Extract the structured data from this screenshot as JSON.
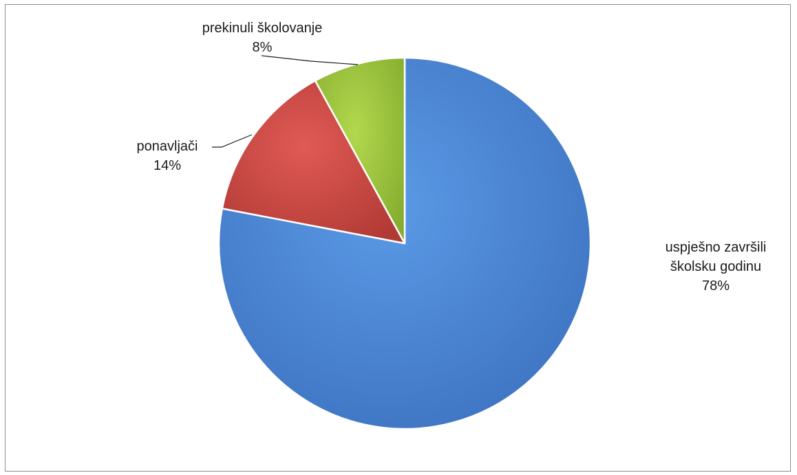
{
  "chart_data": {
    "type": "pie",
    "title": "",
    "slices": [
      {
        "label_lines": [
          "uspješno završili",
          "školsku godinu"
        ],
        "percent_label": "78%",
        "value": 78,
        "color": "#4a86d6"
      },
      {
        "label_lines": [
          "ponavljači"
        ],
        "percent_label": "14%",
        "value": 14,
        "color": "#c94540"
      },
      {
        "label_lines": [
          "prekinuli školovanje"
        ],
        "percent_label": "8%",
        "value": 8,
        "color": "#9bc43c"
      }
    ],
    "start_angle": "12 o'clock",
    "direction": "clockwise",
    "legend": "none",
    "style": "3d-bevel"
  }
}
